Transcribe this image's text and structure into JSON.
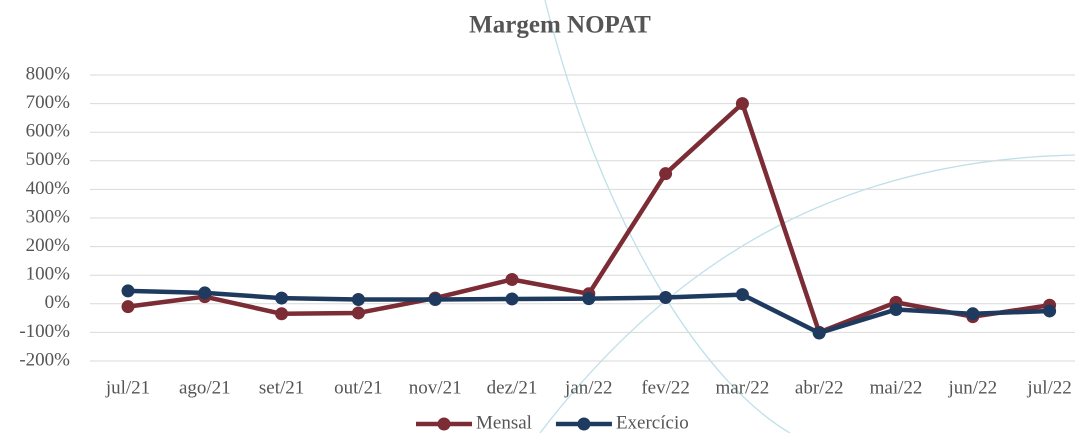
{
  "chart_data": {
    "type": "line",
    "title": "Margem NOPAT",
    "categories": [
      "jul/21",
      "ago/21",
      "set/21",
      "out/21",
      "nov/21",
      "dez/21",
      "jan/22",
      "fev/22",
      "mar/22",
      "abr/22",
      "mai/22",
      "jun/22",
      "jul/22"
    ],
    "series": [
      {
        "name": "Mensal",
        "color": "#7b2c34",
        "values": [
          -10,
          25,
          -35,
          -32,
          20,
          85,
          35,
          455,
          700,
          -100,
          5,
          -45,
          -5
        ]
      },
      {
        "name": "Exercício",
        "color": "#1f3a5f",
        "values": [
          45,
          38,
          20,
          15,
          15,
          17,
          18,
          22,
          32,
          -102,
          -20,
          -35,
          -25
        ]
      }
    ],
    "ylim": [
      -200,
      800
    ],
    "yticks": [
      {
        "value": -200,
        "label": "-200%"
      },
      {
        "value": -100,
        "label": "-100%"
      },
      {
        "value": 0,
        "label": "0%"
      },
      {
        "value": 100,
        "label": "100%"
      },
      {
        "value": 200,
        "label": "200%"
      },
      {
        "value": 300,
        "label": "300%"
      },
      {
        "value": 400,
        "label": "400%"
      },
      {
        "value": 500,
        "label": "500%"
      },
      {
        "value": 600,
        "label": "600%"
      },
      {
        "value": 700,
        "label": "700%"
      },
      {
        "value": 800,
        "label": "800%"
      }
    ],
    "grid": true,
    "legend": "bottom"
  }
}
